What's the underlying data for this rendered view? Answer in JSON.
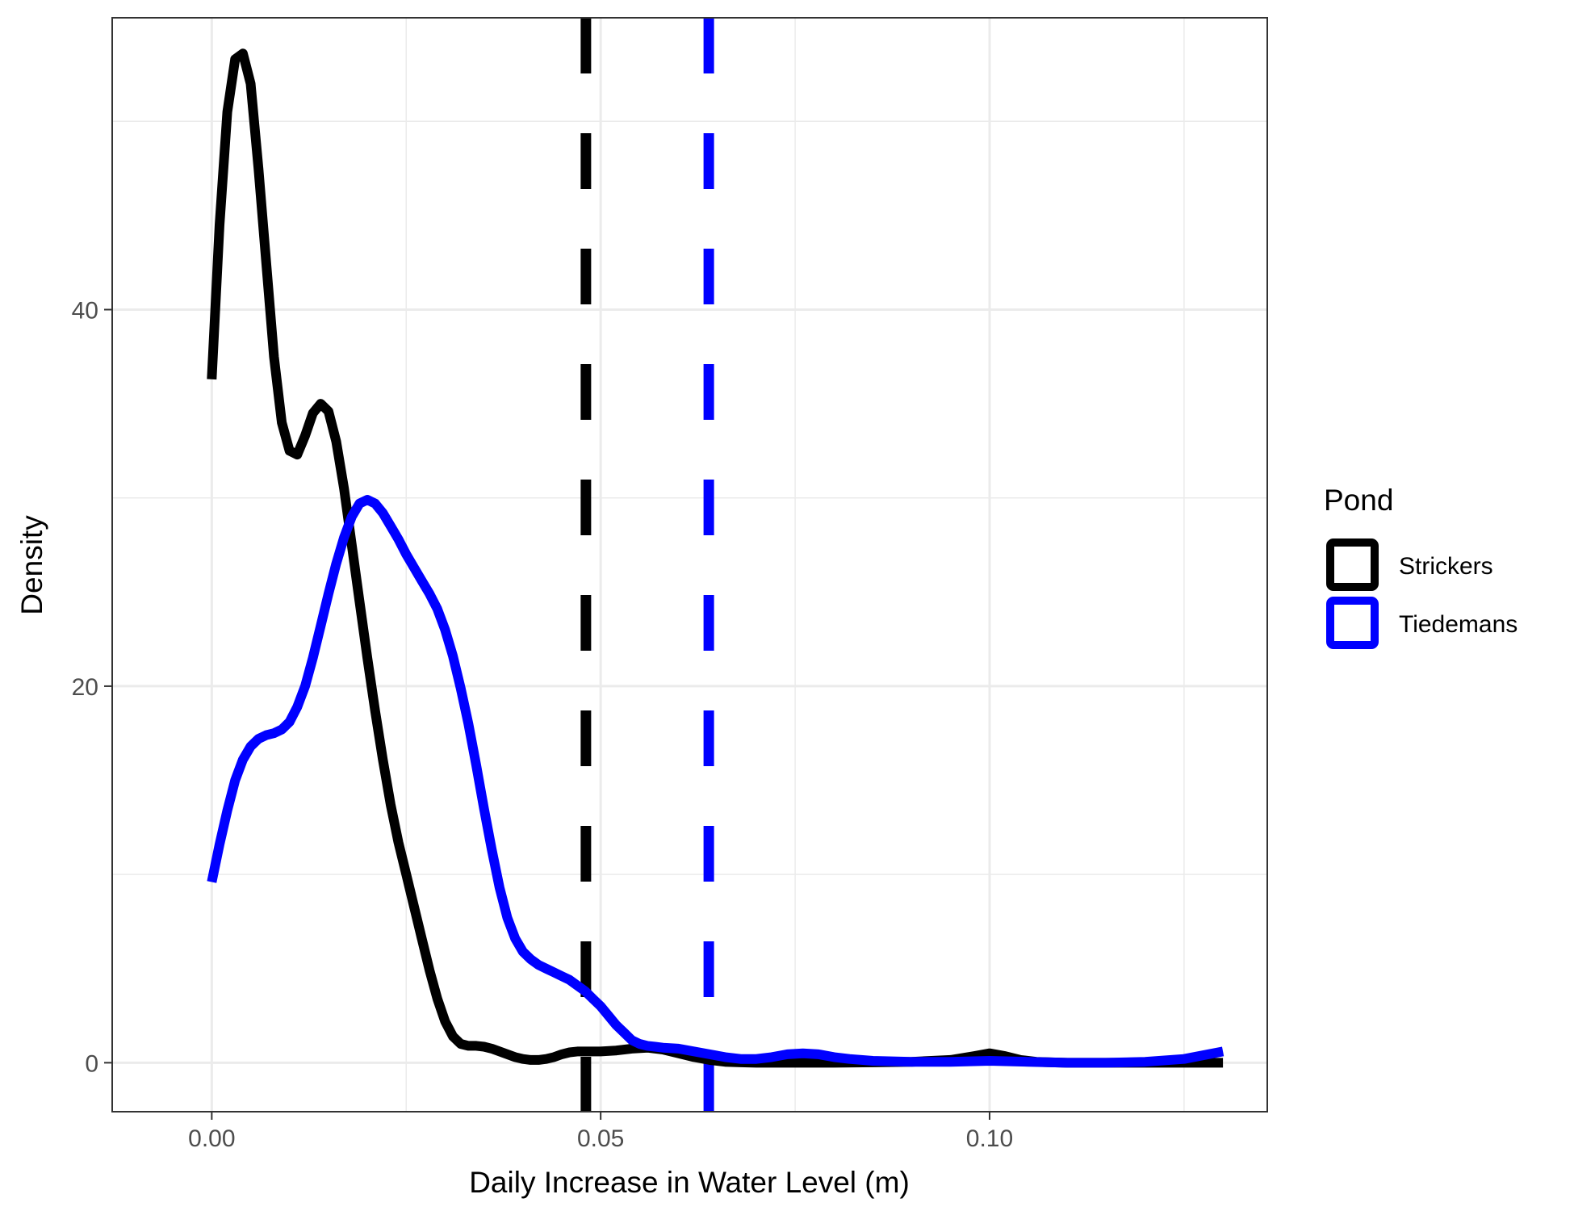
{
  "chart_data": {
    "type": "line",
    "xlabel": "Daily Increase in Water Level (m)",
    "ylabel": "Density",
    "xlim": [
      -0.0128,
      0.1357
    ],
    "ylim": [
      -2.6,
      55.5
    ],
    "x_ticks": [
      0.0,
      0.05,
      0.1
    ],
    "x_tick_labels": [
      "0.00",
      "0.05",
      "0.10"
    ],
    "y_ticks": [
      0,
      20,
      40
    ],
    "y_tick_labels": [
      "0",
      "20",
      "40"
    ],
    "grid": true,
    "legend": {
      "title": "Pond",
      "position": "right"
    },
    "series": [
      {
        "name": "Strickers",
        "color": "#000000",
        "points": [
          [
            0.0,
            36.3
          ],
          [
            0.001,
            44.5
          ],
          [
            0.002,
            50.5
          ],
          [
            0.003,
            53.3
          ],
          [
            0.004,
            53.6
          ],
          [
            0.005,
            52.0
          ],
          [
            0.006,
            47.5
          ],
          [
            0.007,
            42.5
          ],
          [
            0.008,
            37.5
          ],
          [
            0.009,
            34.0
          ],
          [
            0.01,
            32.5
          ],
          [
            0.011,
            32.3
          ],
          [
            0.012,
            33.3
          ],
          [
            0.013,
            34.5
          ],
          [
            0.014,
            35.0
          ],
          [
            0.015,
            34.6
          ],
          [
            0.016,
            33.0
          ],
          [
            0.017,
            30.5
          ],
          [
            0.018,
            27.5
          ],
          [
            0.019,
            24.5
          ],
          [
            0.02,
            21.5
          ],
          [
            0.021,
            18.7
          ],
          [
            0.022,
            16.1
          ],
          [
            0.023,
            13.7
          ],
          [
            0.024,
            11.7
          ],
          [
            0.025,
            10.0
          ],
          [
            0.026,
            8.3
          ],
          [
            0.027,
            6.6
          ],
          [
            0.028,
            4.9
          ],
          [
            0.029,
            3.4
          ],
          [
            0.03,
            2.2
          ],
          [
            0.031,
            1.4
          ],
          [
            0.032,
            1.0
          ],
          [
            0.033,
            0.9
          ],
          [
            0.034,
            0.9
          ],
          [
            0.035,
            0.85
          ],
          [
            0.036,
            0.75
          ],
          [
            0.037,
            0.6
          ],
          [
            0.038,
            0.45
          ],
          [
            0.039,
            0.3
          ],
          [
            0.04,
            0.2
          ],
          [
            0.041,
            0.15
          ],
          [
            0.042,
            0.15
          ],
          [
            0.043,
            0.2
          ],
          [
            0.044,
            0.3
          ],
          [
            0.045,
            0.45
          ],
          [
            0.046,
            0.55
          ],
          [
            0.047,
            0.6
          ],
          [
            0.048,
            0.6
          ],
          [
            0.05,
            0.6
          ],
          [
            0.052,
            0.65
          ],
          [
            0.054,
            0.75
          ],
          [
            0.056,
            0.8
          ],
          [
            0.058,
            0.7
          ],
          [
            0.06,
            0.5
          ],
          [
            0.062,
            0.3
          ],
          [
            0.064,
            0.15
          ],
          [
            0.066,
            0.05
          ],
          [
            0.068,
            0.02
          ],
          [
            0.07,
            0.0
          ],
          [
            0.075,
            0.0
          ],
          [
            0.08,
            0.0
          ],
          [
            0.085,
            0.02
          ],
          [
            0.09,
            0.05
          ],
          [
            0.095,
            0.15
          ],
          [
            0.098,
            0.35
          ],
          [
            0.1,
            0.5
          ],
          [
            0.102,
            0.35
          ],
          [
            0.104,
            0.15
          ],
          [
            0.106,
            0.05
          ],
          [
            0.108,
            0.02
          ],
          [
            0.11,
            0.0
          ],
          [
            0.12,
            0.0
          ],
          [
            0.13,
            0.0
          ]
        ]
      },
      {
        "name": "Tiedemans",
        "color": "#0000ff",
        "points": [
          [
            0.0,
            9.6
          ],
          [
            0.001,
            11.6
          ],
          [
            0.002,
            13.4
          ],
          [
            0.003,
            15.0
          ],
          [
            0.004,
            16.1
          ],
          [
            0.005,
            16.8
          ],
          [
            0.006,
            17.2
          ],
          [
            0.007,
            17.4
          ],
          [
            0.008,
            17.5
          ],
          [
            0.009,
            17.7
          ],
          [
            0.01,
            18.1
          ],
          [
            0.011,
            18.9
          ],
          [
            0.012,
            20.0
          ],
          [
            0.013,
            21.5
          ],
          [
            0.014,
            23.2
          ],
          [
            0.015,
            24.9
          ],
          [
            0.016,
            26.5
          ],
          [
            0.017,
            27.9
          ],
          [
            0.018,
            29.0
          ],
          [
            0.019,
            29.7
          ],
          [
            0.02,
            29.9
          ],
          [
            0.021,
            29.7
          ],
          [
            0.022,
            29.2
          ],
          [
            0.023,
            28.5
          ],
          [
            0.024,
            27.8
          ],
          [
            0.025,
            27.0
          ],
          [
            0.026,
            26.3
          ],
          [
            0.027,
            25.6
          ],
          [
            0.028,
            24.9
          ],
          [
            0.029,
            24.1
          ],
          [
            0.03,
            23.0
          ],
          [
            0.031,
            21.6
          ],
          [
            0.032,
            19.9
          ],
          [
            0.033,
            18.0
          ],
          [
            0.034,
            15.8
          ],
          [
            0.035,
            13.5
          ],
          [
            0.036,
            11.3
          ],
          [
            0.037,
            9.3
          ],
          [
            0.038,
            7.7
          ],
          [
            0.039,
            6.6
          ],
          [
            0.04,
            5.9
          ],
          [
            0.041,
            5.5
          ],
          [
            0.042,
            5.2
          ],
          [
            0.043,
            5.0
          ],
          [
            0.044,
            4.8
          ],
          [
            0.045,
            4.6
          ],
          [
            0.046,
            4.4
          ],
          [
            0.047,
            4.1
          ],
          [
            0.048,
            3.8
          ],
          [
            0.049,
            3.4
          ],
          [
            0.05,
            3.0
          ],
          [
            0.051,
            2.5
          ],
          [
            0.052,
            2.0
          ],
          [
            0.053,
            1.6
          ],
          [
            0.054,
            1.2
          ],
          [
            0.055,
            1.0
          ],
          [
            0.056,
            0.9
          ],
          [
            0.057,
            0.85
          ],
          [
            0.058,
            0.8
          ],
          [
            0.06,
            0.75
          ],
          [
            0.062,
            0.6
          ],
          [
            0.064,
            0.45
          ],
          [
            0.066,
            0.3
          ],
          [
            0.068,
            0.2
          ],
          [
            0.07,
            0.2
          ],
          [
            0.072,
            0.3
          ],
          [
            0.074,
            0.45
          ],
          [
            0.076,
            0.5
          ],
          [
            0.078,
            0.45
          ],
          [
            0.08,
            0.3
          ],
          [
            0.082,
            0.2
          ],
          [
            0.085,
            0.1
          ],
          [
            0.09,
            0.05
          ],
          [
            0.095,
            0.05
          ],
          [
            0.1,
            0.1
          ],
          [
            0.105,
            0.05
          ],
          [
            0.11,
            0.0
          ],
          [
            0.115,
            0.0
          ],
          [
            0.12,
            0.05
          ],
          [
            0.125,
            0.2
          ],
          [
            0.13,
            0.6
          ]
        ]
      }
    ],
    "vlines": [
      {
        "series": "Strickers",
        "x": 0.0481,
        "color": "#000000",
        "style": "dashed"
      },
      {
        "series": "Tiedemans",
        "x": 0.0639,
        "color": "#0000ff",
        "style": "dashed"
      }
    ]
  }
}
